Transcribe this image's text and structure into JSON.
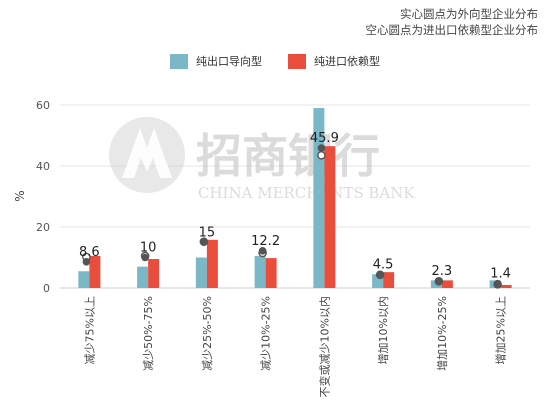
{
  "notes": {
    "line1": "实心圆点为外向型企业分布",
    "line2": "空心圆点为进出口依赖型企业分布"
  },
  "watermark": {
    "name_cn": "招商银行",
    "name_en": "CHINA MERCHANTS BANK"
  },
  "colors": {
    "series1": "#7ab8c8",
    "series2": "#e94e3d",
    "grid": "#e6e6e6",
    "marker": "#555555"
  },
  "chart_data": {
    "type": "bar",
    "ylabel": "%",
    "ylim": [
      0,
      60
    ],
    "yticks": [
      0,
      20,
      40,
      60
    ],
    "grid": true,
    "legend_position": "top-center",
    "categories": [
      "减少75%以上",
      "减少50%-75%",
      "减少25%-50%",
      "减少10%-25%",
      "不变或减少10%以内",
      "增加10%以内",
      "增加10%-25%",
      "增加25%以上"
    ],
    "series": [
      {
        "name": "纯出口导向型",
        "values": [
          5.5,
          7,
          10,
          10.5,
          59,
          4.5,
          2.5,
          2.5
        ]
      },
      {
        "name": "纯进口依赖型",
        "values": [
          10.5,
          9.5,
          15.8,
          9.8,
          46.5,
          5.2,
          2.5,
          1
        ]
      }
    ],
    "markers": {
      "solid": [
        8.6,
        10,
        15,
        12.2,
        45.9,
        4.5,
        2.3,
        1.4
      ],
      "hollow": [
        10.2,
        10.5,
        15.2,
        11.5,
        43.5,
        4.3,
        2.2,
        1.2
      ]
    },
    "data_labels": [
      "8.6",
      "10",
      "15",
      "12.2",
      "45.9",
      "4.5",
      "2.3",
      "1.4"
    ]
  }
}
